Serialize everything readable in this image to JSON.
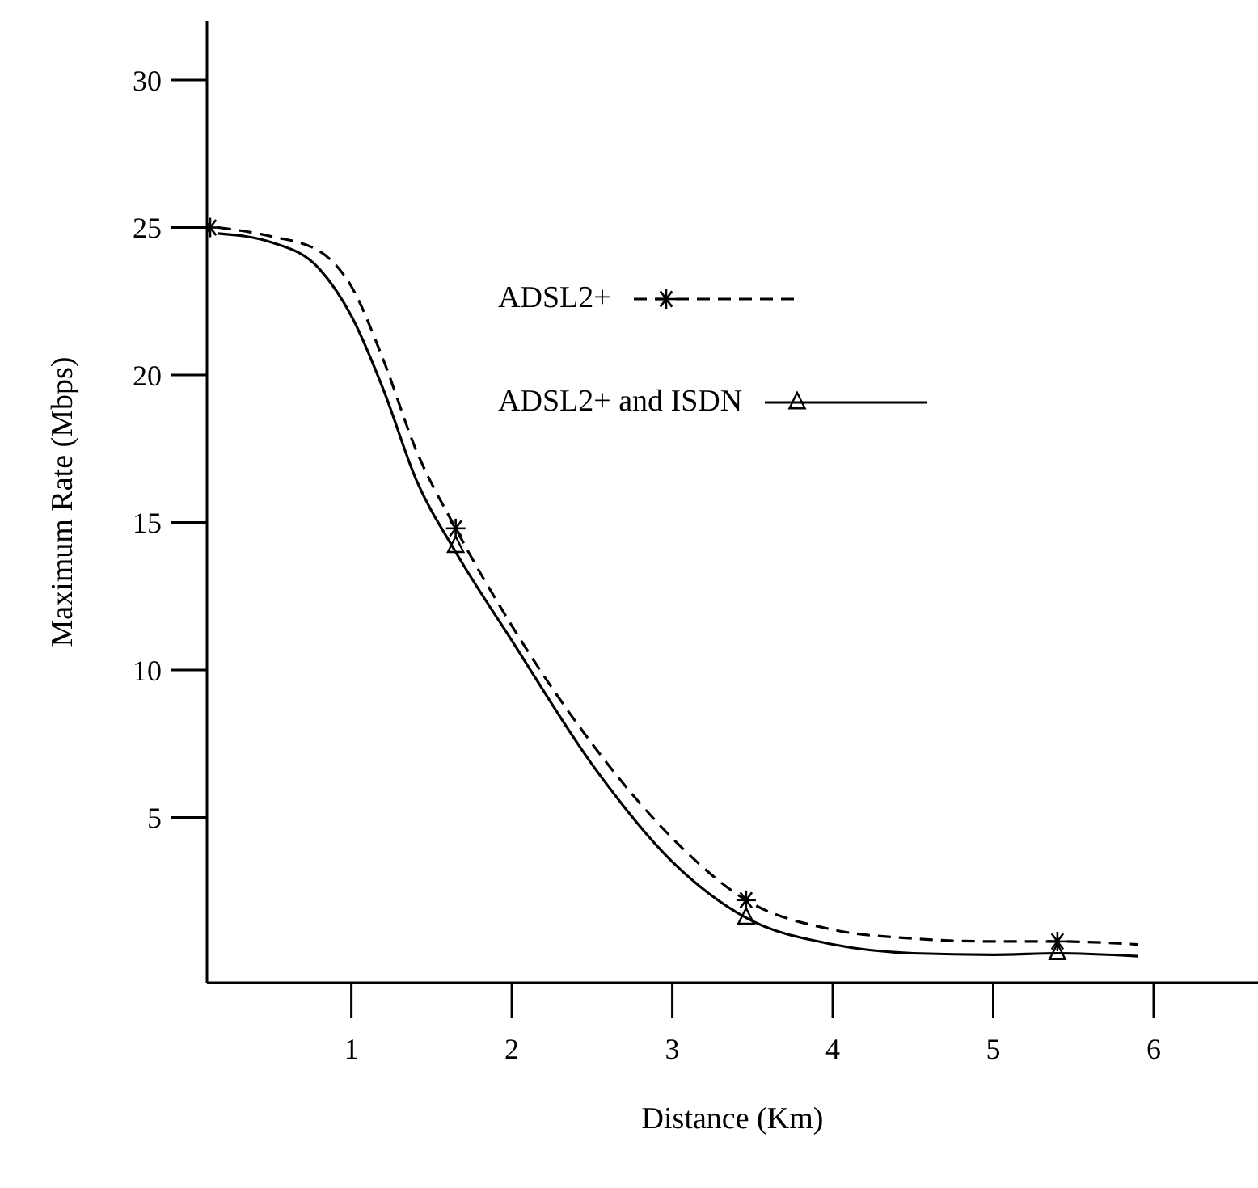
{
  "chart_data": {
    "type": "line",
    "xlabel": "Distance (Km)",
    "ylabel": "Maximum Rate (Mbps)",
    "xlim": [
      0.1,
      6.65
    ],
    "xticks": [
      1,
      2,
      3,
      4,
      5,
      6
    ],
    "ylim": [
      -0.6,
      32
    ],
    "yticks": [
      5,
      10,
      15,
      20,
      25,
      30
    ],
    "grid": false,
    "legend": "top",
    "series": [
      {
        "name": "ADSL2+",
        "color": "#000000",
        "line_style": "dashed",
        "marker": "none",
        "x": [
          0.17,
          0.5,
          0.8,
          1.0,
          1.2,
          1.4,
          1.65,
          2.0,
          2.5,
          3.0,
          3.46,
          4.0,
          4.5,
          5.0,
          5.4,
          5.9
        ],
        "values": [
          25,
          24.7,
          24.2,
          23,
          20.5,
          17.5,
          14.8,
          11.5,
          7.5,
          4.3,
          2.2,
          1.2,
          0.9,
          0.8,
          0.8,
          0.7
        ]
      },
      {
        "type": "scatter",
        "color": "#000000",
        "marker": "cross",
        "x": [
          0.12,
          1.65,
          3.46,
          5.4
        ],
        "values": [
          25,
          14.8,
          2.2,
          0.8
        ]
      },
      {
        "name": "ADSL2+ and ISDN",
        "color": "#000000",
        "line_style": "solid",
        "marker": "none",
        "x": [
          0.17,
          0.5,
          0.8,
          1.0,
          1.2,
          1.4,
          1.65,
          2.0,
          2.5,
          3.0,
          3.46,
          4.0,
          4.5,
          5.0,
          5.4,
          5.9
        ],
        "values": [
          24.8,
          24.5,
          23.6,
          22,
          19.5,
          16.5,
          14,
          11,
          6.8,
          3.5,
          1.6,
          0.7,
          0.4,
          0.35,
          0.4,
          0.3
        ]
      },
      {
        "type": "scatter",
        "color": "#000000",
        "marker": "triangle",
        "x": [
          1.65,
          3.46,
          5.4
        ],
        "values": [
          14.2,
          1.6,
          0.4
        ]
      }
    ]
  }
}
